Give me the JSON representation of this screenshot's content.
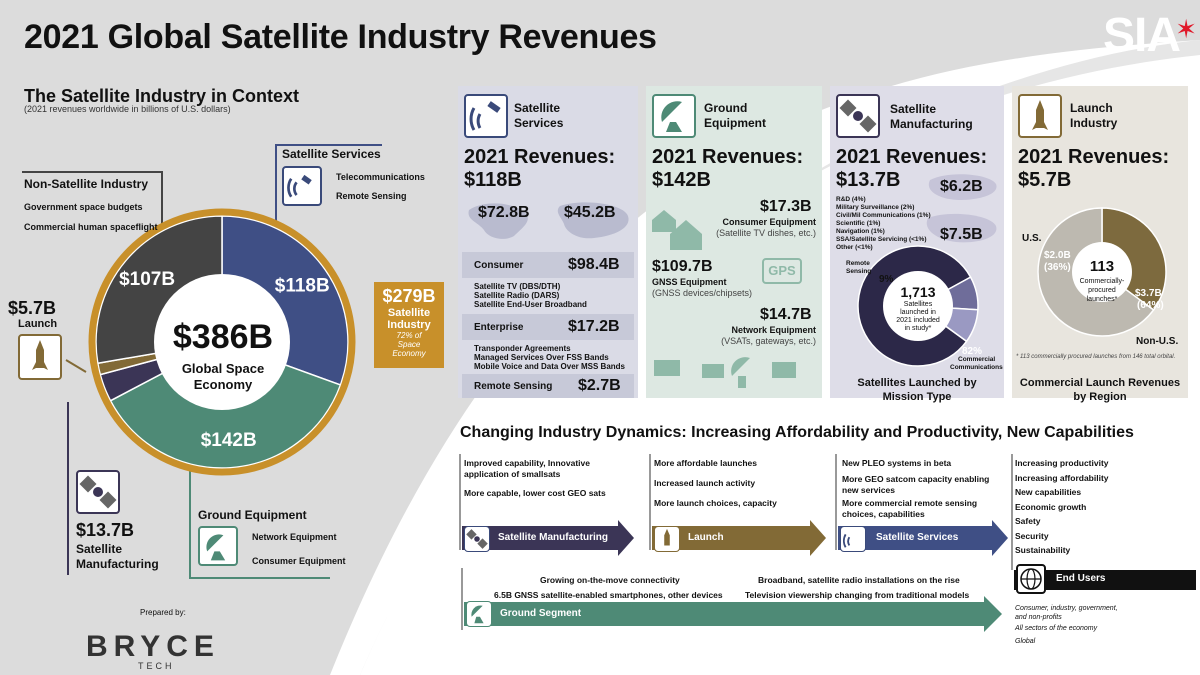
{
  "page_title": "2021 Global Satellite Industry Revenues",
  "logo_text": "SIA",
  "context": {
    "title": "The Satellite Industry in Context",
    "subtitle": "(2021 revenues worldwide in billions of U.S. dollars)",
    "center_value": "$386B",
    "center_label_1": "Global Space",
    "center_label_2": "Economy",
    "non_satellite": {
      "title": "Non-Satellite Industry",
      "items": [
        "Government space budgets",
        "Commercial human spaceflight"
      ],
      "value": "$107B"
    },
    "satellite_services": {
      "title": "Satellite Services",
      "items": [
        "Telecommunications",
        "Remote Sensing"
      ],
      "value": "$118B"
    },
    "satellite_industry": {
      "value": "$279B",
      "label_1": "Satellite",
      "label_2": "Industry",
      "note_1": "72% of",
      "note_2": "Space",
      "note_3": "Economy"
    },
    "launch": {
      "value": "$5.7B",
      "label": "Launch"
    },
    "manufacturing": {
      "value": "$13.7B",
      "label_1": "Satellite",
      "label_2": "Manufacturing"
    },
    "ground": {
      "title": "Ground Equipment",
      "items": [
        "Network Equipment",
        "Consumer Equipment"
      ],
      "value": "$142B"
    },
    "prepared_by": "Prepared by:",
    "bryce": "BRYCE",
    "bryce_sub": "TECH"
  },
  "chart_data": [
    {
      "type": "pie",
      "title": "",
      "categories": [
        "Satellite Services",
        "Ground Equipment",
        "Satellite Manufacturing",
        "Launch",
        "Non-Satellite Industry"
      ],
      "values": [
        118,
        142,
        13.7,
        5.7,
        107
      ],
      "labels": [
        "$118B",
        "$142B",
        "",
        "",
        "$107B"
      ],
      "colors": [
        "#3f4f85",
        "#4e8a76",
        "#3b3556",
        "#826a36",
        "#444444"
      ]
    },
    {
      "type": "pie",
      "title": "Satellites Launched by Mission Type",
      "categories": [
        "Commercial Communications",
        "Remote Sensing",
        "Other"
      ],
      "values": [
        82,
        9,
        9
      ],
      "labels": [
        "82%",
        "9%",
        ""
      ],
      "colors": [
        "#2c2848",
        "#6f6d9a",
        "#9a99c2"
      ]
    },
    {
      "type": "pie",
      "title": "Commercial Launch Revenues by Region",
      "categories": [
        "U.S.",
        "Non-U.S."
      ],
      "values": [
        2.0,
        3.7
      ],
      "labels": [
        "$2.0B (36%)",
        "$3.7B (64%)"
      ],
      "colors": [
        "#7d6a3e",
        "#bdb9b0"
      ]
    }
  ],
  "panels": {
    "services": {
      "name_1": "Satellite",
      "name_2": "Services",
      "rev_1": "2021 Revenues:",
      "rev_2": "$118B",
      "map_1": "$72.8B",
      "map_2": "$45.2B",
      "consumer_label": "Consumer",
      "consumer_value": "$98.4B",
      "consumer_items": [
        "Satellite TV (DBS/DTH)",
        "Satellite Radio (DARS)",
        "Satellite End-User Broadband"
      ],
      "enterprise_label": "Enterprise",
      "enterprise_value": "$17.2B",
      "enterprise_items": [
        "Transponder Agreements",
        "Managed Services Over FSS Bands",
        "Mobile Voice and Data Over MSS Bands"
      ],
      "remote_label": "Remote Sensing",
      "remote_value": "$2.7B"
    },
    "ground": {
      "name_1": "Ground",
      "name_2": "Equipment",
      "rev_1": "2021 Revenues:",
      "rev_2": "$142B",
      "consumer_value": "$17.3B",
      "consumer_label": "Consumer Equipment",
      "consumer_note": "(Satellite TV dishes, etc.)",
      "gnss_value": "$109.7B",
      "gnss_label": "GNSS Equipment",
      "gnss_note": "(GNSS devices/chipsets)",
      "gps": "GPS",
      "network_value": "$14.7B",
      "network_label": "Network Equipment",
      "network_note": "(VSATs, gateways, etc.)"
    },
    "manufacturing": {
      "name_1": "Satellite",
      "name_2": "Manufacturing",
      "rev_1": "2021 Revenues:",
      "rev_2": "$13.7B",
      "map_1": "$6.2B",
      "map_2": "$7.5B",
      "breakdown": [
        "R&D (4%)",
        "Military Surveillance (2%)",
        "Civil/Mil Communications (1%)",
        "Scientific (1%)",
        "Navigation (1%)",
        "SSA/Satellite Servicing (<1%)",
        "Other (<1%)"
      ],
      "remote_label_1": "Remote",
      "remote_label_2": "Sensing",
      "remote_pct": "9%",
      "count": "1,713",
      "count_1": "Satellites",
      "count_2": "launched in",
      "count_3": "2021 included",
      "count_4": "in study*",
      "comm_pct": "82%",
      "comm_label_1": "Commercial",
      "comm_label_2": "Communications",
      "chart_title_1": "Satellites Launched by",
      "chart_title_2": "Mission Type"
    },
    "launch": {
      "name_1": "Launch",
      "name_2": "Industry",
      "rev_1": "2021 Revenues:",
      "rev_2": "$5.7B",
      "us_label": "U.S.",
      "us_value": "$2.0B",
      "us_pct": "(36%)",
      "center_value": "113",
      "center_1": "Commercially-",
      "center_2": "procured",
      "center_3": "launches*",
      "non_us_value": "$3.7B",
      "non_us_pct": "(64%)",
      "non_us_label": "Non-U.S.",
      "footnote": "* 113 commercially procured launches from 146 total orbital.",
      "chart_title_1": "Commercial Launch Revenues",
      "chart_title_2": "by Region"
    }
  },
  "dynamics": {
    "title": "Changing Industry Dynamics: Increasing Affordability and Productivity, New Capabilities",
    "manufacturing": {
      "items": [
        "Improved capability, Innovative application of smallsats",
        "More capable, lower cost GEO sats"
      ],
      "label": "Satellite Manufacturing"
    },
    "launch": {
      "items": [
        "More affordable launches",
        "Increased launch activity",
        "More launch choices, capacity"
      ],
      "label": "Launch"
    },
    "services": {
      "items": [
        "New PLEO systems in beta",
        "More GEO satcom capacity enabling new services",
        "More commercial remote sensing choices, capabilities"
      ],
      "label": "Satellite Services"
    },
    "end_users": {
      "items": [
        "Increasing productivity",
        "Increasing affordability",
        "New capabilities",
        "Economic growth",
        "Safety",
        "Security",
        "Sustainability"
      ],
      "label": "End Users",
      "notes": [
        "Consumer, industry, government, and non-profits",
        "All sectors of the economy",
        "Global"
      ]
    },
    "ground": {
      "items": [
        "Growing on-the-move connectivity",
        "6.5B GNSS satellite-enabled smartphones, other devices",
        "Broadband, satellite radio installations on the rise",
        "Television viewership changing from traditional models"
      ],
      "label": "Ground Segment"
    }
  }
}
